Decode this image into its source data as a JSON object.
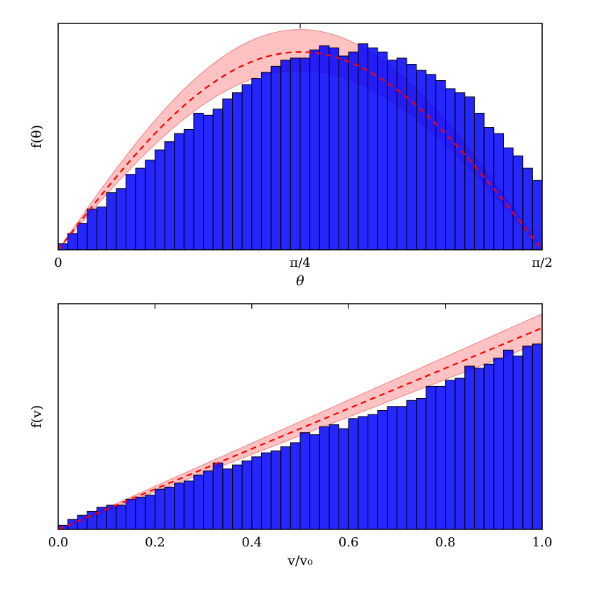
{
  "colors": {
    "bar_fill": "#0000ff",
    "bar_edge": "#000000",
    "band_fill": "#ff9a9a",
    "fit_line": "#ff0000"
  },
  "chart_data": [
    {
      "type": "bar",
      "name": "angle-histogram",
      "xlabel": "θ",
      "ylabel": "f(θ)",
      "xlim": [
        0,
        1.5708
      ],
      "ylim": [
        0,
        1.11
      ],
      "x_ticks": [
        {
          "value": 0,
          "label": "0"
        },
        {
          "value": 0.7854,
          "label": "π/4"
        },
        {
          "value": 1.5708,
          "label": "π/2"
        }
      ],
      "y_ticks": [],
      "bins": 50,
      "bin_range": [
        0,
        1.5708
      ],
      "values": [
        0.03,
        0.08,
        0.13,
        0.2,
        0.21,
        0.28,
        0.3,
        0.37,
        0.4,
        0.44,
        0.49,
        0.53,
        0.57,
        0.59,
        0.67,
        0.66,
        0.69,
        0.74,
        0.77,
        0.81,
        0.84,
        0.87,
        0.9,
        0.93,
        0.94,
        0.94,
        0.98,
        1.0,
        0.99,
        0.95,
        0.97,
        1.01,
        0.99,
        0.97,
        0.93,
        0.94,
        0.91,
        0.88,
        0.86,
        0.83,
        0.79,
        0.77,
        0.75,
        0.67,
        0.6,
        0.57,
        0.5,
        0.46,
        0.4,
        0.34
      ],
      "fit": {
        "formula": "sin(2x)",
        "style": "dashed",
        "amplitude": 0.97
      },
      "band": {
        "formula": "sin(2x)",
        "upper": 1.08,
        "lower": 0.88
      },
      "grid": false,
      "legend": "none"
    },
    {
      "type": "bar",
      "name": "speed-histogram",
      "xlabel": "v/v₀",
      "ylabel": "f(v)",
      "xlim": [
        0,
        1.0
      ],
      "ylim": [
        0,
        1.12
      ],
      "x_ticks": [
        {
          "value": 0,
          "label": "0.0"
        },
        {
          "value": 0.2,
          "label": "0.2"
        },
        {
          "value": 0.4,
          "label": "0.4"
        },
        {
          "value": 0.6,
          "label": "0.6"
        },
        {
          "value": 0.8,
          "label": "0.8"
        },
        {
          "value": 1.0,
          "label": "1.0"
        }
      ],
      "y_ticks": [],
      "bins": 50,
      "bin_range": [
        0,
        1.0
      ],
      "values": [
        0.02,
        0.05,
        0.07,
        0.09,
        0.11,
        0.12,
        0.12,
        0.15,
        0.16,
        0.17,
        0.2,
        0.21,
        0.23,
        0.24,
        0.27,
        0.29,
        0.33,
        0.3,
        0.32,
        0.34,
        0.36,
        0.38,
        0.39,
        0.41,
        0.43,
        0.48,
        0.47,
        0.51,
        0.52,
        0.5,
        0.55,
        0.56,
        0.57,
        0.59,
        0.61,
        0.61,
        0.64,
        0.65,
        0.71,
        0.71,
        0.74,
        0.75,
        0.81,
        0.8,
        0.82,
        0.85,
        0.89,
        0.86,
        0.91,
        0.92
      ],
      "fit": {
        "formula": "x",
        "style": "dashed",
        "amplitude": 1.0
      },
      "band": {
        "formula": "x",
        "upper": 1.07,
        "lower": 0.93
      },
      "grid": false,
      "legend": "none"
    }
  ]
}
